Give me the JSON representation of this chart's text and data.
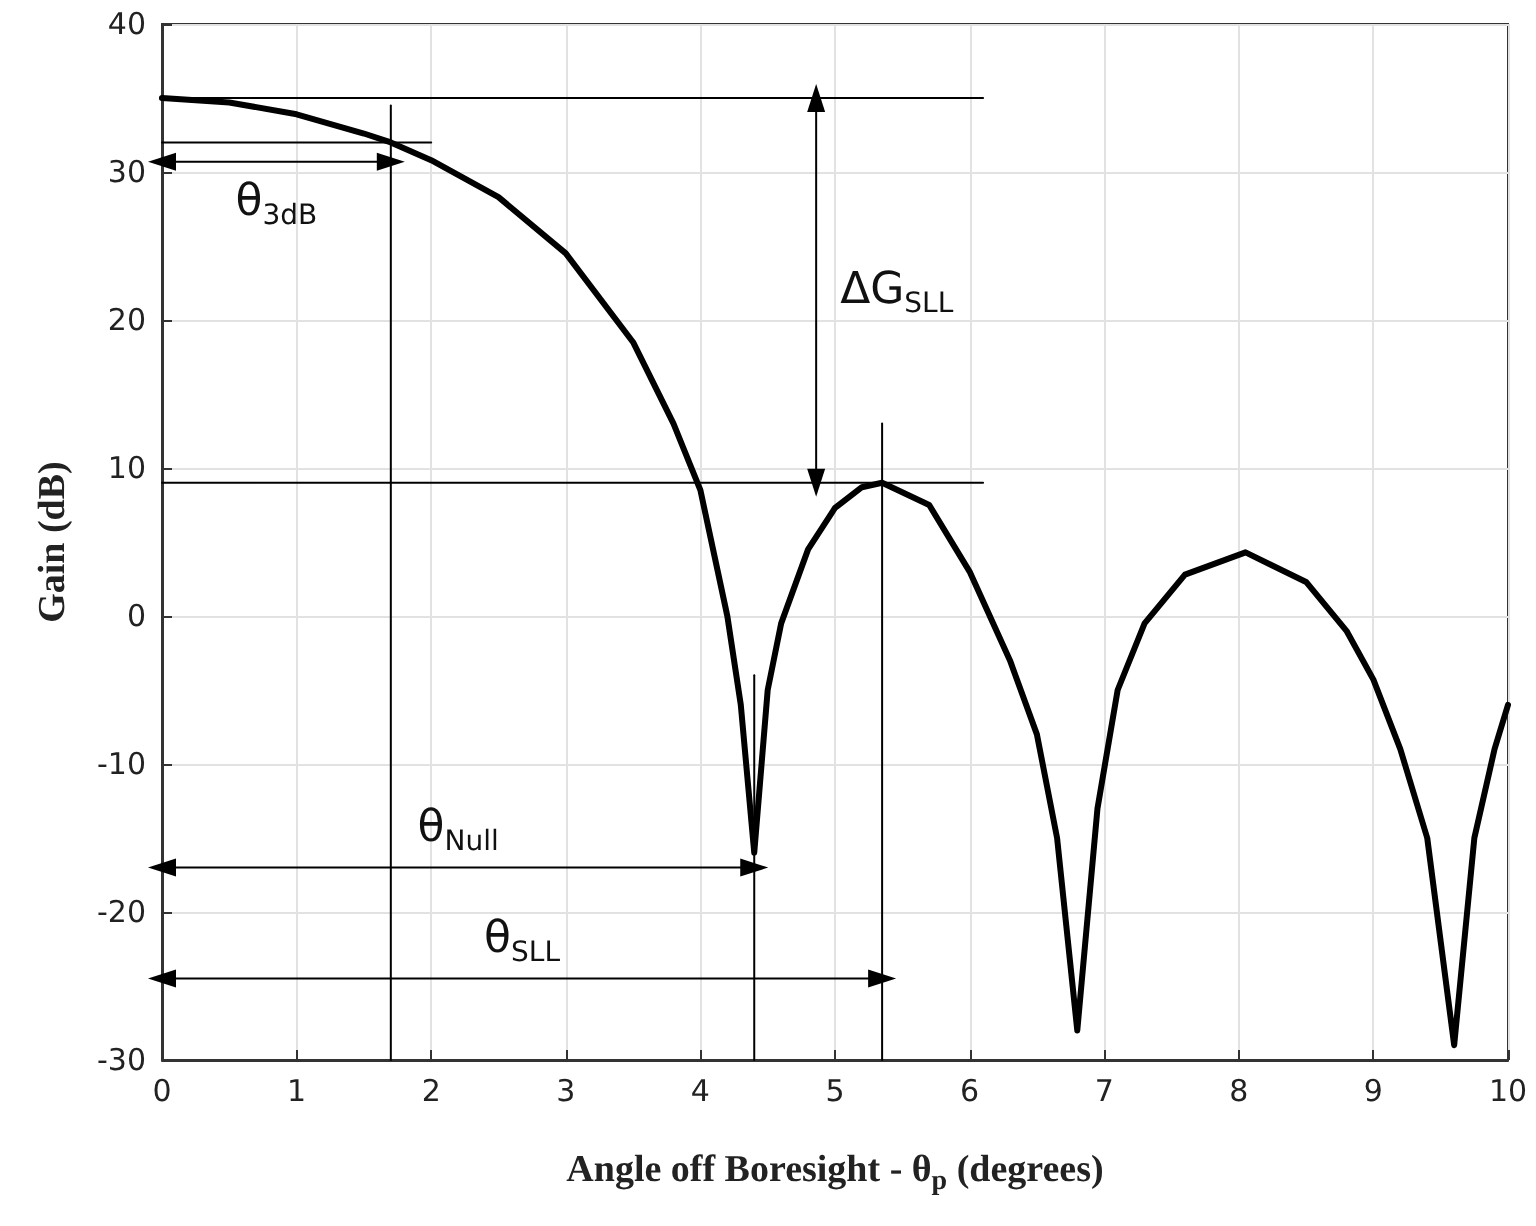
{
  "chart_data": {
    "type": "line",
    "xlabel": "Angle off Boresight - θ$_{p}$ (degrees)",
    "ylabel": "Gain (dB)",
    "xlim": [
      0,
      10
    ],
    "xticks": [
      0,
      1,
      2,
      3,
      4,
      5,
      6,
      7,
      8,
      9,
      10
    ],
    "ylim": [
      -30,
      40
    ],
    "yticks": [
      -30,
      -20,
      -10,
      0,
      10,
      20,
      30,
      40
    ],
    "grid": true,
    "series": [
      {
        "color": "#000000",
        "x": [
          0,
          0.5,
          1,
          1.5,
          1.7,
          2,
          2.5,
          3,
          3.5,
          3.8,
          4,
          4.2,
          4.3,
          4.4,
          4.5,
          4.6,
          4.8,
          5,
          5.2,
          5.35,
          5.7,
          6,
          6.3,
          6.5,
          6.65,
          6.8,
          6.95,
          7.1,
          7.3,
          7.6,
          8.05,
          8.5,
          8.8,
          9,
          9.2,
          9.4,
          9.6,
          9.75,
          9.9,
          10
        ],
        "values": [
          35,
          34.7,
          33.9,
          32.6,
          32,
          30.8,
          28.3,
          24.5,
          18.5,
          13,
          8.5,
          0,
          -6,
          -16,
          -5,
          -0.5,
          4.5,
          7.3,
          8.7,
          9,
          7.5,
          3,
          -3,
          -8,
          -15,
          -28,
          -13,
          -5,
          -0.5,
          2.8,
          4.3,
          2.3,
          -1,
          -4.3,
          -9,
          -15,
          -29,
          -15,
          -9,
          -6
        ]
      },
      {
        "color": "#000000",
        "x": [
          0,
          6.1
        ],
        "values": [
          35,
          35
        ]
      },
      {
        "color": "#000000",
        "x": [
          0,
          2
        ],
        "values": [
          32,
          32
        ]
      },
      {
        "color": "#000000",
        "x": [
          0,
          6.1
        ],
        "values": [
          9,
          9
        ]
      },
      {
        "color": "#000000",
        "x": [
          1.7,
          1.7
        ],
        "values": [
          -30,
          34.5
        ]
      },
      {
        "color": "#000000",
        "x": [
          4.4,
          4.4
        ],
        "values": [
          -30,
          -4
        ]
      },
      {
        "color": "#000000",
        "x": [
          5.35,
          5.35
        ],
        "values": [
          -30,
          13
        ]
      },
      {
        "color": "#000000",
        "marker": "triangle",
        "x": [
          0,
          1.7
        ],
        "values": [
          30.7,
          30.7
        ]
      },
      {
        "color": "#000000",
        "marker": "triangle",
        "x": [
          4.86,
          4.86
        ],
        "values": [
          35,
          9
        ]
      },
      {
        "color": "#000000",
        "marker": "triangle",
        "x": [
          0,
          4.4
        ],
        "values": [
          -17,
          -17
        ]
      },
      {
        "color": "#000000",
        "marker": "triangle",
        "x": [
          0,
          5.35
        ],
        "values": [
          -24.5,
          -24.5
        ]
      }
    ],
    "annotations": [
      "θ$_{3dB}$",
      "ΔG$_{SLL}$",
      "θ$_{Null}$",
      "θ$_{SLL}$"
    ]
  }
}
